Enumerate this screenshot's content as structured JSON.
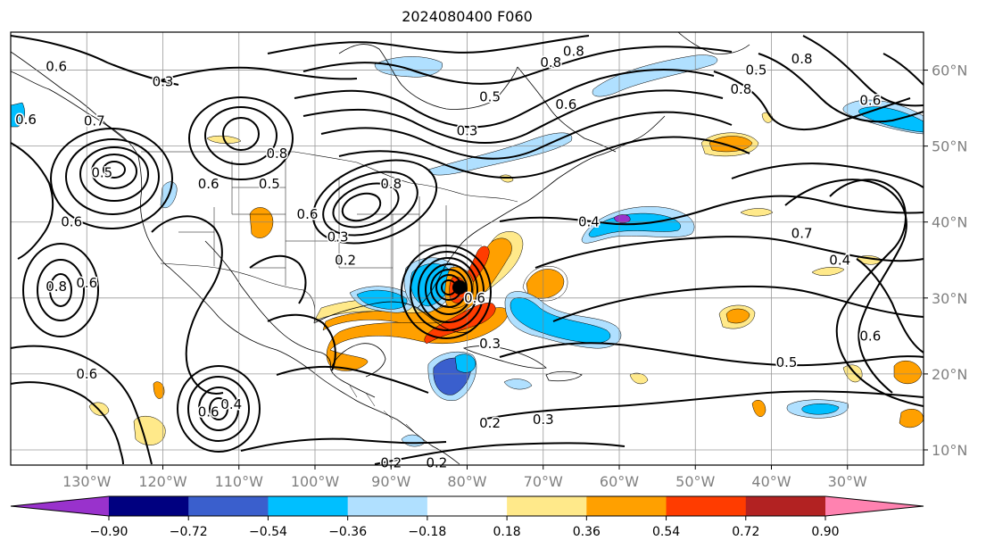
{
  "title": "2024080400 F060",
  "map": {
    "lon_range": [
      -140,
      -20
    ],
    "lat_range": [
      8,
      65
    ],
    "lon_ticks": [
      {
        "lon": -130,
        "label": "130°W"
      },
      {
        "lon": -120,
        "label": "120°W"
      },
      {
        "lon": -110,
        "label": "110°W"
      },
      {
        "lon": -100,
        "label": "100°W"
      },
      {
        "lon": -90,
        "label": "90°W"
      },
      {
        "lon": -80,
        "label": "80°W"
      },
      {
        "lon": -70,
        "label": "70°W"
      },
      {
        "lon": -60,
        "label": "60°W"
      },
      {
        "lon": -50,
        "label": "50°W"
      },
      {
        "lon": -40,
        "label": "40°W"
      },
      {
        "lon": -30,
        "label": "30°W"
      }
    ],
    "lat_ticks": [
      {
        "lat": 60,
        "label": "60°N"
      },
      {
        "lat": 50,
        "label": "50°N"
      },
      {
        "lat": 40,
        "label": "40°N"
      },
      {
        "lat": 30,
        "label": "30°N"
      },
      {
        "lat": 20,
        "label": "20°N"
      },
      {
        "lat": 10,
        "label": "10°N"
      }
    ],
    "grid": true,
    "storm_center": {
      "lon": -81,
      "lat": 31.4
    },
    "contour_labels": [
      {
        "lon": -134,
        "lat": 60.5,
        "text": "0.6"
      },
      {
        "lon": -120,
        "lat": 58.5,
        "text": "0.3"
      },
      {
        "lon": -138,
        "lat": 53.5,
        "text": "0.6"
      },
      {
        "lon": -128,
        "lat": 46.5,
        "text": "0.5"
      },
      {
        "lon": -129,
        "lat": 53.3,
        "text": "0.7"
      },
      {
        "lon": -132,
        "lat": 40,
        "text": "0.6"
      },
      {
        "lon": -134,
        "lat": 31.5,
        "text": "0.8"
      },
      {
        "lon": -130,
        "lat": 32,
        "text": "0.6"
      },
      {
        "lon": -130,
        "lat": 20,
        "text": "0.6"
      },
      {
        "lon": -114,
        "lat": 45,
        "text": "0.6"
      },
      {
        "lon": -106,
        "lat": 45,
        "text": "0.5"
      },
      {
        "lon": -105,
        "lat": 49,
        "text": "0.8"
      },
      {
        "lon": -90,
        "lat": 45,
        "text": "0.8"
      },
      {
        "lon": -101,
        "lat": 41,
        "text": "0.6"
      },
      {
        "lon": -97,
        "lat": 38,
        "text": "0.3"
      },
      {
        "lon": -96,
        "lat": 35,
        "text": "0.2"
      },
      {
        "lon": -80,
        "lat": 52,
        "text": "0.3"
      },
      {
        "lon": -77,
        "lat": 56.5,
        "text": "0.5"
      },
      {
        "lon": -67,
        "lat": 55.5,
        "text": "0.6"
      },
      {
        "lon": -69,
        "lat": 61,
        "text": "0.8"
      },
      {
        "lon": -66,
        "lat": 62.5,
        "text": "0.8"
      },
      {
        "lon": -36,
        "lat": 61.5,
        "text": "0.8"
      },
      {
        "lon": -42,
        "lat": 60,
        "text": "0.5"
      },
      {
        "lon": -44,
        "lat": 57.5,
        "text": "0.8"
      },
      {
        "lon": -27,
        "lat": 56,
        "text": "0.6"
      },
      {
        "lon": -64,
        "lat": 40,
        "text": "0.4"
      },
      {
        "lon": -36,
        "lat": 38.5,
        "text": "0.7"
      },
      {
        "lon": -31,
        "lat": 35,
        "text": "0.4"
      },
      {
        "lon": -27,
        "lat": 25,
        "text": "0.6"
      },
      {
        "lon": -38,
        "lat": 21.5,
        "text": "0.5"
      },
      {
        "lon": -77,
        "lat": 24,
        "text": "0.3"
      },
      {
        "lon": -77,
        "lat": 13.5,
        "text": "0.2"
      },
      {
        "lon": -70,
        "lat": 14,
        "text": "0.3"
      },
      {
        "lon": -90,
        "lat": 8.3,
        "text": "0.2"
      },
      {
        "lon": -84,
        "lat": 8.3,
        "text": "0.2"
      },
      {
        "lon": -114,
        "lat": 15,
        "text": "0.6"
      },
      {
        "lon": -111,
        "lat": 16,
        "text": "0.4"
      },
      {
        "lon": -79,
        "lat": 30,
        "text": "0.6"
      }
    ]
  },
  "colorbar": {
    "tick_labels": [
      "−0.90",
      "−0.72",
      "−0.54",
      "−0.36",
      "−0.18",
      "0.18",
      "0.36",
      "0.54",
      "0.72",
      "0.90"
    ],
    "colors": [
      "#9932cc",
      "#000080",
      "#3a5fcd",
      "#00bfff",
      "#b0e0ff",
      "#ffffff",
      "#ffe98a",
      "#ffa000",
      "#ff3c00",
      "#b22222",
      "#ff82b0"
    ]
  }
}
